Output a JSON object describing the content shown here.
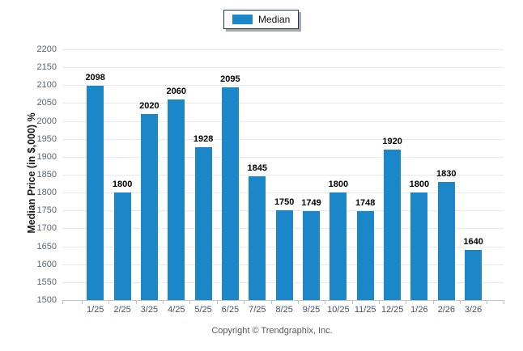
{
  "legend": {
    "label": "Median"
  },
  "chart_data": {
    "type": "bar",
    "title": "",
    "series_name": "Median",
    "categories": [
      "1/25",
      "2/25",
      "3/25",
      "4/25",
      "5/25",
      "6/25",
      "7/25",
      "8/25",
      "9/25",
      "10/25",
      "11/25",
      "12/25",
      "1/26",
      "2/26",
      "3/26"
    ],
    "values": [
      2098,
      1800,
      2020,
      2060,
      1928,
      2095,
      1845,
      1750,
      1749,
      1800,
      1748,
      1920,
      1800,
      1830,
      1640
    ],
    "xlabel": "",
    "ylabel": "Median Price (in $,000) %",
    "ylim": [
      1500,
      2200
    ],
    "ytick_step": 50,
    "yticks": [
      1500,
      1550,
      1600,
      1650,
      1700,
      1750,
      1800,
      1850,
      1900,
      1950,
      2000,
      2050,
      2100,
      2150,
      2200
    ],
    "grid": true,
    "legend_position": "top-center",
    "bar_color": "#1b87c9"
  },
  "footer": {
    "copyright": "Copyright © Trendgraphix, Inc."
  }
}
